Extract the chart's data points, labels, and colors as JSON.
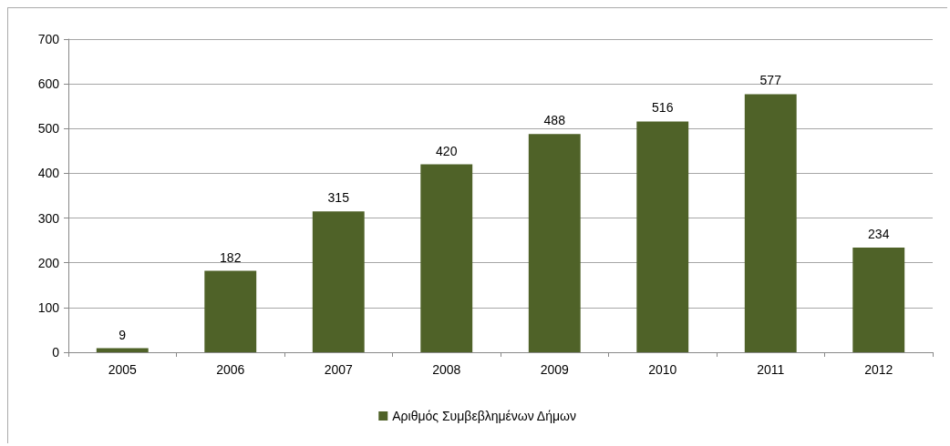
{
  "chart_data": {
    "type": "bar",
    "categories": [
      "2005",
      "2006",
      "2007",
      "2008",
      "2009",
      "2010",
      "2011",
      "2012"
    ],
    "series": [
      {
        "name": "Αριθμός Συμβεβλημένων Δήμων",
        "color": "#4f6228",
        "values": [
          9,
          182,
          315,
          420,
          488,
          516,
          577,
          234
        ]
      }
    ],
    "ylim": [
      0,
      700
    ],
    "yticks": [
      0,
      100,
      200,
      300,
      400,
      500,
      600,
      700
    ],
    "grid": "y",
    "data_labels": true,
    "legend": "bottom"
  }
}
